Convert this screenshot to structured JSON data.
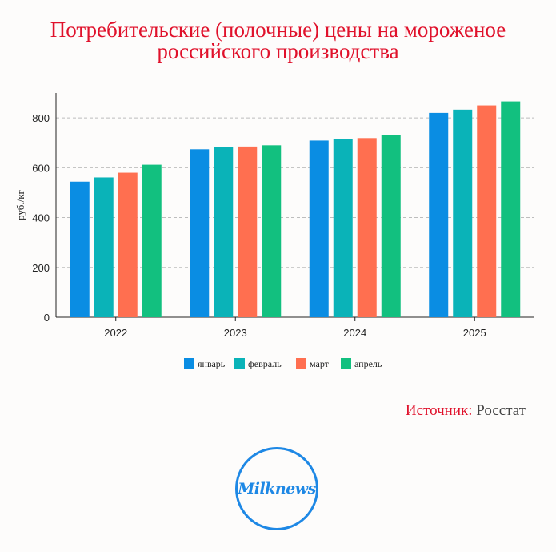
{
  "title_line1": "Потребительские (полочные) цены на мороженое",
  "title_line2": "российского производства",
  "source": {
    "label": "Источник:",
    "value": "Росстат"
  },
  "logo_text": "Milknews",
  "chart_data": {
    "type": "bar",
    "title": "Потребительские (полочные) цены на мороженое российского производства",
    "ylabel": "руб./кг",
    "xlabel": "",
    "categories": [
      "2022",
      "2023",
      "2024",
      "2025"
    ],
    "ylim": [
      0,
      900
    ],
    "yticks": [
      0,
      200,
      400,
      600,
      800
    ],
    "grid": true,
    "legend_position": "bottom",
    "series": [
      {
        "name": "январь",
        "color": "#0a8de3",
        "values": [
          544,
          674,
          709,
          820
        ]
      },
      {
        "name": "февраль",
        "color": "#0ab3b8",
        "values": [
          561,
          682,
          716,
          833
        ]
      },
      {
        "name": "март",
        "color": "#ff6f50",
        "values": [
          580,
          685,
          719,
          850
        ]
      },
      {
        "name": "апрель",
        "color": "#12c07f",
        "values": [
          612,
          690,
          731,
          866
        ]
      }
    ]
  }
}
